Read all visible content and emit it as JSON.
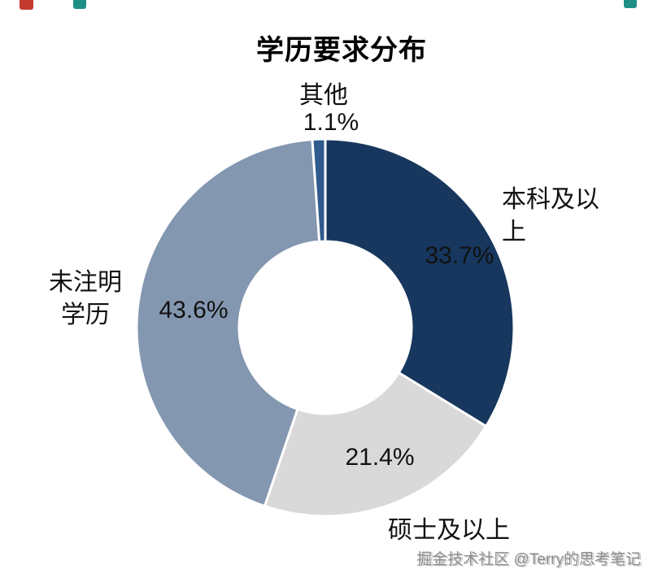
{
  "page": {
    "watermark": "掘金技术社区 @Terry的思考笔记"
  },
  "chart_data": {
    "type": "pie",
    "donut": true,
    "title": "学历要求分布",
    "start_angle_deg": 0,
    "direction": "clockwise",
    "legend": "none",
    "slices": [
      {
        "label": "本科及以上",
        "value": 33.7,
        "pct_label": "33.7%",
        "color": "#17375E"
      },
      {
        "label": "硕士及以上",
        "value": 21.4,
        "pct_label": "21.4%",
        "color": "#D9D9D9"
      },
      {
        "label": "未注明学历",
        "value": 43.6,
        "pct_label": "43.6%",
        "color": "#8497B0"
      },
      {
        "label": "其他",
        "value": 1.1,
        "pct_label": "1.1%",
        "color": "#2F5B8C"
      }
    ]
  }
}
